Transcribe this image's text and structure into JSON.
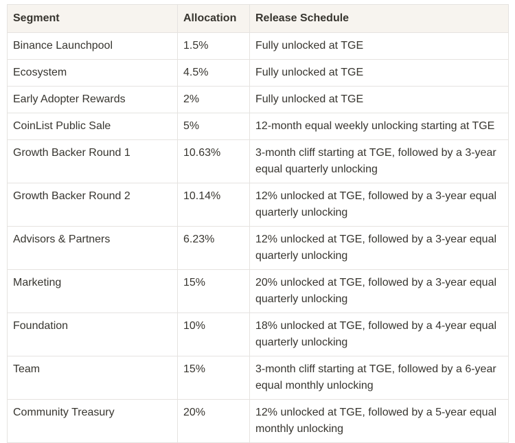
{
  "colors": {
    "header_bg": "#f7f4ef",
    "border_color": "#e5e3e0",
    "text_color": "#37352f"
  },
  "table": {
    "columns": [
      {
        "key": "segment",
        "label": "Segment"
      },
      {
        "key": "allocation",
        "label": "Allocation"
      },
      {
        "key": "release",
        "label": "Release Schedule"
      }
    ],
    "rows": [
      {
        "segment": "Binance Launchpool",
        "allocation": "1.5%",
        "release": "Fully unlocked at TGE"
      },
      {
        "segment": "Ecosystem",
        "allocation": "4.5%",
        "release": "Fully unlocked at TGE"
      },
      {
        "segment": "Early Adopter Rewards",
        "allocation": "2%",
        "release": "Fully unlocked at TGE"
      },
      {
        "segment": "CoinList Public Sale",
        "allocation": "5%",
        "release": "12-month equal weekly unlocking starting at TGE"
      },
      {
        "segment": "Growth Backer Round 1",
        "allocation": "10.63%",
        "release": "3-month cliff starting at TGE, followed by a 3-year equal quarterly unlocking"
      },
      {
        "segment": "Growth Backer Round 2",
        "allocation": "10.14%",
        "release": "12% unlocked at TGE, followed by a 3-year equal quarterly unlocking"
      },
      {
        "segment": "Advisors & Partners",
        "allocation": "6.23%",
        "release": "12% unlocked at TGE, followed by a 3-year equal quarterly unlocking"
      },
      {
        "segment": "Marketing",
        "allocation": "15%",
        "release": "20% unlocked at TGE, followed by a 3-year equal quarterly unlocking"
      },
      {
        "segment": "Foundation",
        "allocation": "10%",
        "release": "18% unlocked at TGE, followed by a 4-year equal quarterly unlocking"
      },
      {
        "segment": "Team",
        "allocation": "15%",
        "release": "3-month cliff starting at TGE, followed by a 6-year equal monthly unlocking"
      },
      {
        "segment": "Community Treasury",
        "allocation": "20%",
        "release": "12% unlocked at TGE, followed by a 5-year equal monthly unlocking"
      }
    ]
  }
}
